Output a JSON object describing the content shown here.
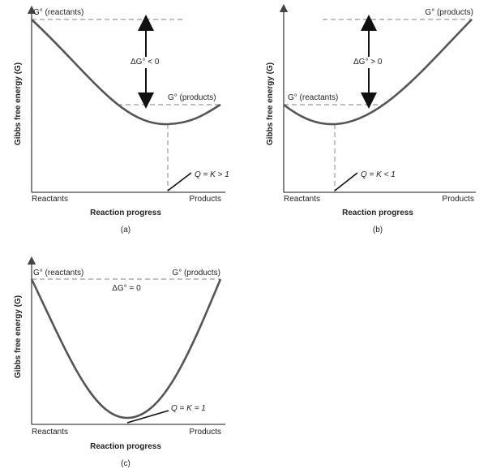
{
  "panels": [
    {
      "id": "a",
      "caption": "(a)",
      "y_axis_title": "Gibbs free energy (G)",
      "x_axis_title": "Reaction progress",
      "x_left_label": "Reactants",
      "x_right_label": "Products",
      "top_label": "G° (reactants)",
      "level_label": "G° (products)",
      "delta_label": "ΔG° < 0",
      "q_label": "Q = K > 1"
    },
    {
      "id": "b",
      "caption": "(b)",
      "y_axis_title": "Gibbs free energy (G)",
      "x_axis_title": "Reaction progress",
      "x_left_label": "Reactants",
      "x_right_label": "Products",
      "top_label": "G° (products)",
      "level_label": "G° (reactants)",
      "delta_label": "ΔG° > 0",
      "q_label": "Q = K < 1"
    },
    {
      "id": "c",
      "caption": "(c)",
      "y_axis_title": "Gibbs free energy (G)",
      "x_axis_title": "Reaction progress",
      "x_left_label": "Reactants",
      "x_right_label": "Products",
      "top_left_label": "G° (reactants)",
      "top_right_label": "G° (products)",
      "delta_label": "ΔG° = 0",
      "q_label": "Q = K = 1"
    }
  ],
  "colors": {
    "curve": "#555555",
    "axis": "#444444",
    "dashed_line": "#999999",
    "arrow": "#111111"
  }
}
